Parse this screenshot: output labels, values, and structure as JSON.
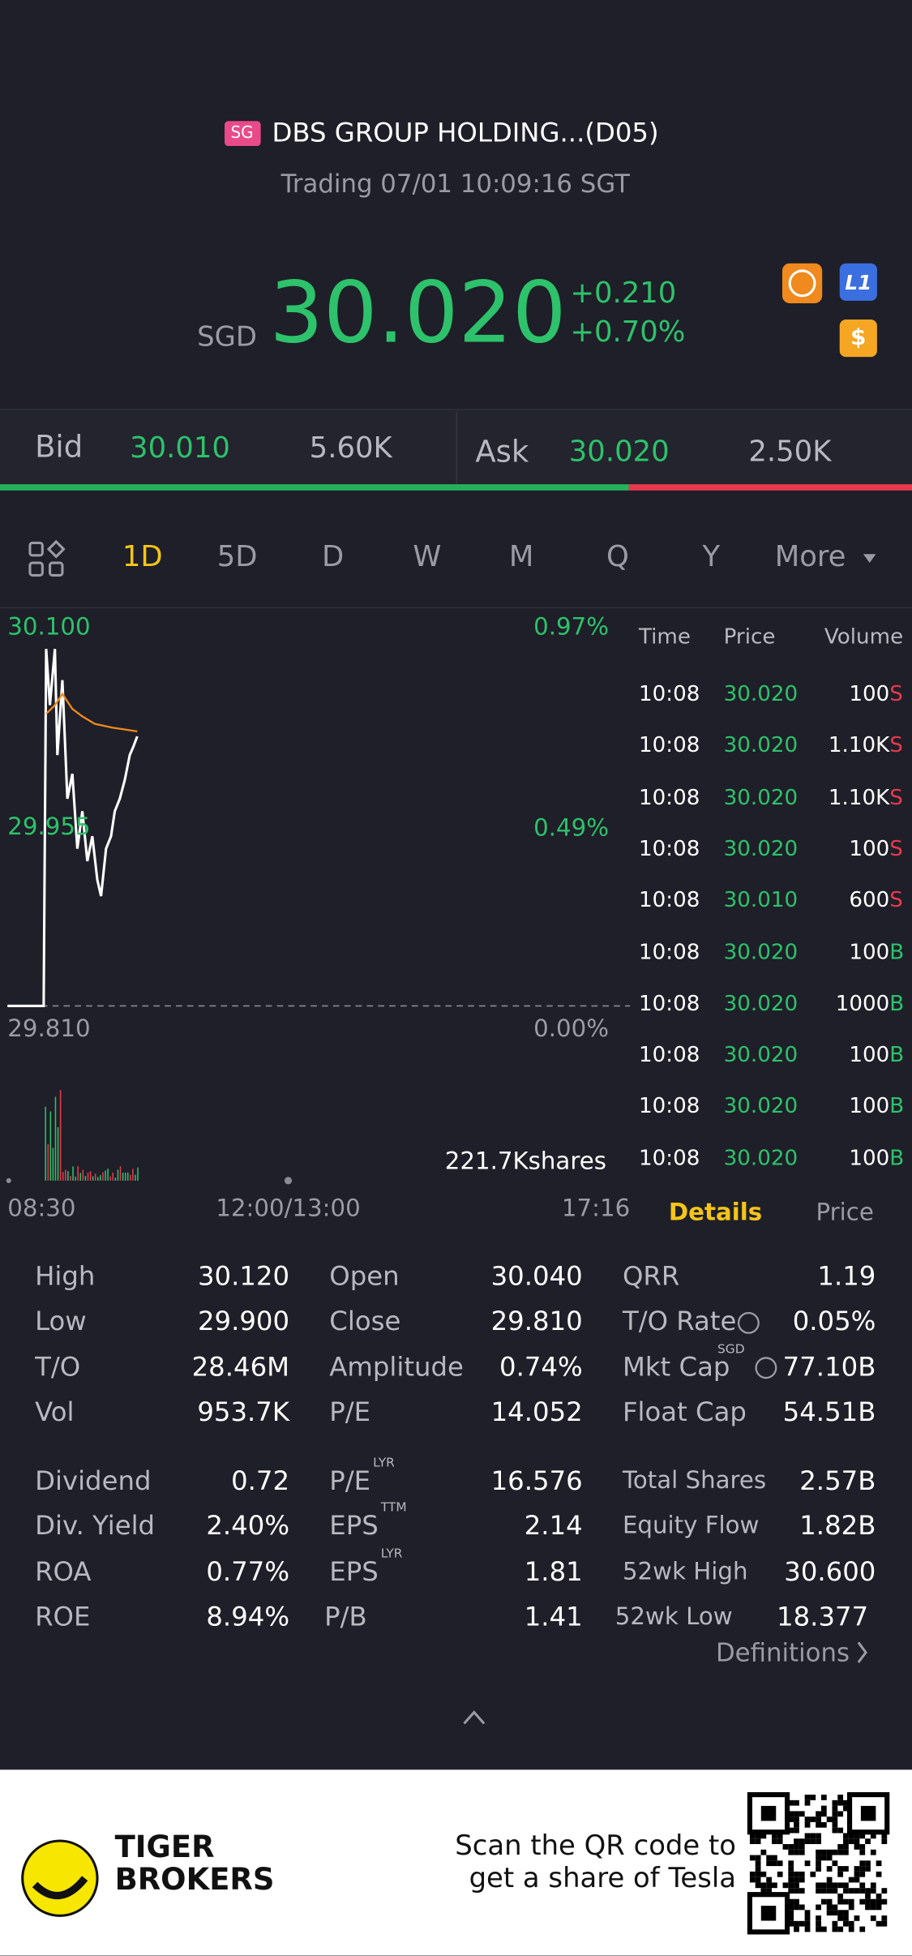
{
  "header": {
    "badge": "SG",
    "name": "DBS GROUP HOLDING...(D05)",
    "status": "Trading 07/01 10:09:16 SGT"
  },
  "quote": {
    "currency": "SGD",
    "price": "30.020",
    "change": "+0.210",
    "change_pct": "+0.70%",
    "icons": [
      "L1",
      "$"
    ]
  },
  "bid_ask": {
    "bid_label": "Bid",
    "bid": "30.010",
    "bid_size": "5.60K",
    "ask_label": "Ask",
    "ask": "30.020",
    "ask_size": "2.50K"
  },
  "tabs": [
    "1D",
    "5D",
    "D",
    "W",
    "M",
    "Q",
    "Y",
    "More"
  ],
  "chart": {
    "price_high": "30.100",
    "pct_high": "0.97%",
    "price_mid": "29.955",
    "pct_mid": "0.49%",
    "price_low": "29.810",
    "pct_low": "0.00%",
    "volume": "221.7Kshares",
    "times": [
      "08:30",
      "12:00/13:00",
      "17:16"
    ]
  },
  "trades": {
    "headers": [
      "Time",
      "Price",
      "Volume"
    ],
    "rows": [
      [
        "10:08",
        "30.020",
        "100",
        "S"
      ],
      [
        "10:08",
        "30.020",
        "1.10K",
        "S"
      ],
      [
        "10:08",
        "30.020",
        "1.10K",
        "S"
      ],
      [
        "10:08",
        "30.020",
        "100",
        "S"
      ],
      [
        "10:08",
        "30.010",
        "600",
        "S"
      ],
      [
        "10:08",
        "30.020",
        "100",
        "B"
      ],
      [
        "10:08",
        "30.020",
        "1000",
        "B"
      ],
      [
        "10:08",
        "30.020",
        "100",
        "B"
      ],
      [
        "10:08",
        "30.020",
        "100",
        "B"
      ],
      [
        "10:08",
        "30.020",
        "100",
        "B"
      ]
    ]
  },
  "details_tabs": [
    "Details",
    "Price"
  ],
  "stats": [
    [
      {
        "label": "High",
        "value": "30.120"
      },
      {
        "label": "Open",
        "value": "30.040"
      },
      {
        "label": "QRR",
        "value": "1.19"
      }
    ],
    [
      {
        "label": "Low",
        "value": "29.900"
      },
      {
        "label": "Close",
        "value": "29.810"
      },
      {
        "label": "T/O Rate",
        "value": "0.05%"
      }
    ],
    [
      {
        "label": "T/O",
        "value": "28.46M"
      },
      {
        "label": "Amplitude",
        "value": "0.74%"
      },
      {
        "label": "Mkt Cap",
        "sup": "SGD",
        "value": "77.10B"
      }
    ],
    [
      {
        "label": "Vol",
        "value": "953.7K"
      },
      {
        "label": "P/E",
        "value": "14.052"
      },
      {
        "label": "Float Cap",
        "value": "54.51B"
      }
    ],
    [
      {
        "label": "Dividend",
        "value": "0.72"
      },
      {
        "label": "P/E",
        "sup": "LYR",
        "value": "16.576"
      },
      {
        "label": "Total Shares",
        "value": "2.57B"
      }
    ],
    [
      {
        "label": "Div. Yield",
        "value": "2.40%"
      },
      {
        "label": "EPS",
        "sup": "TTM",
        "value": "2.14"
      },
      {
        "label": "Equity Flow",
        "value": "1.82B"
      }
    ],
    [
      {
        "label": "ROA",
        "value": "0.77%"
      },
      {
        "label": "EPS",
        "sup": "LYR",
        "value": "1.81"
      },
      {
        "label": "52wk High",
        "value": "30.600"
      }
    ],
    [
      {
        "label": "ROE",
        "value": "8.94%"
      },
      {
        "label": "P/B",
        "value": "1.41"
      },
      {
        "label": "52wk Low",
        "value": "18.377"
      }
    ]
  ],
  "definitions": "Definitions",
  "footer": {
    "brand": [
      "TIGER",
      "BROKERS"
    ],
    "promo": [
      "Scan the QR code to",
      "get a share of Tesla"
    ]
  }
}
